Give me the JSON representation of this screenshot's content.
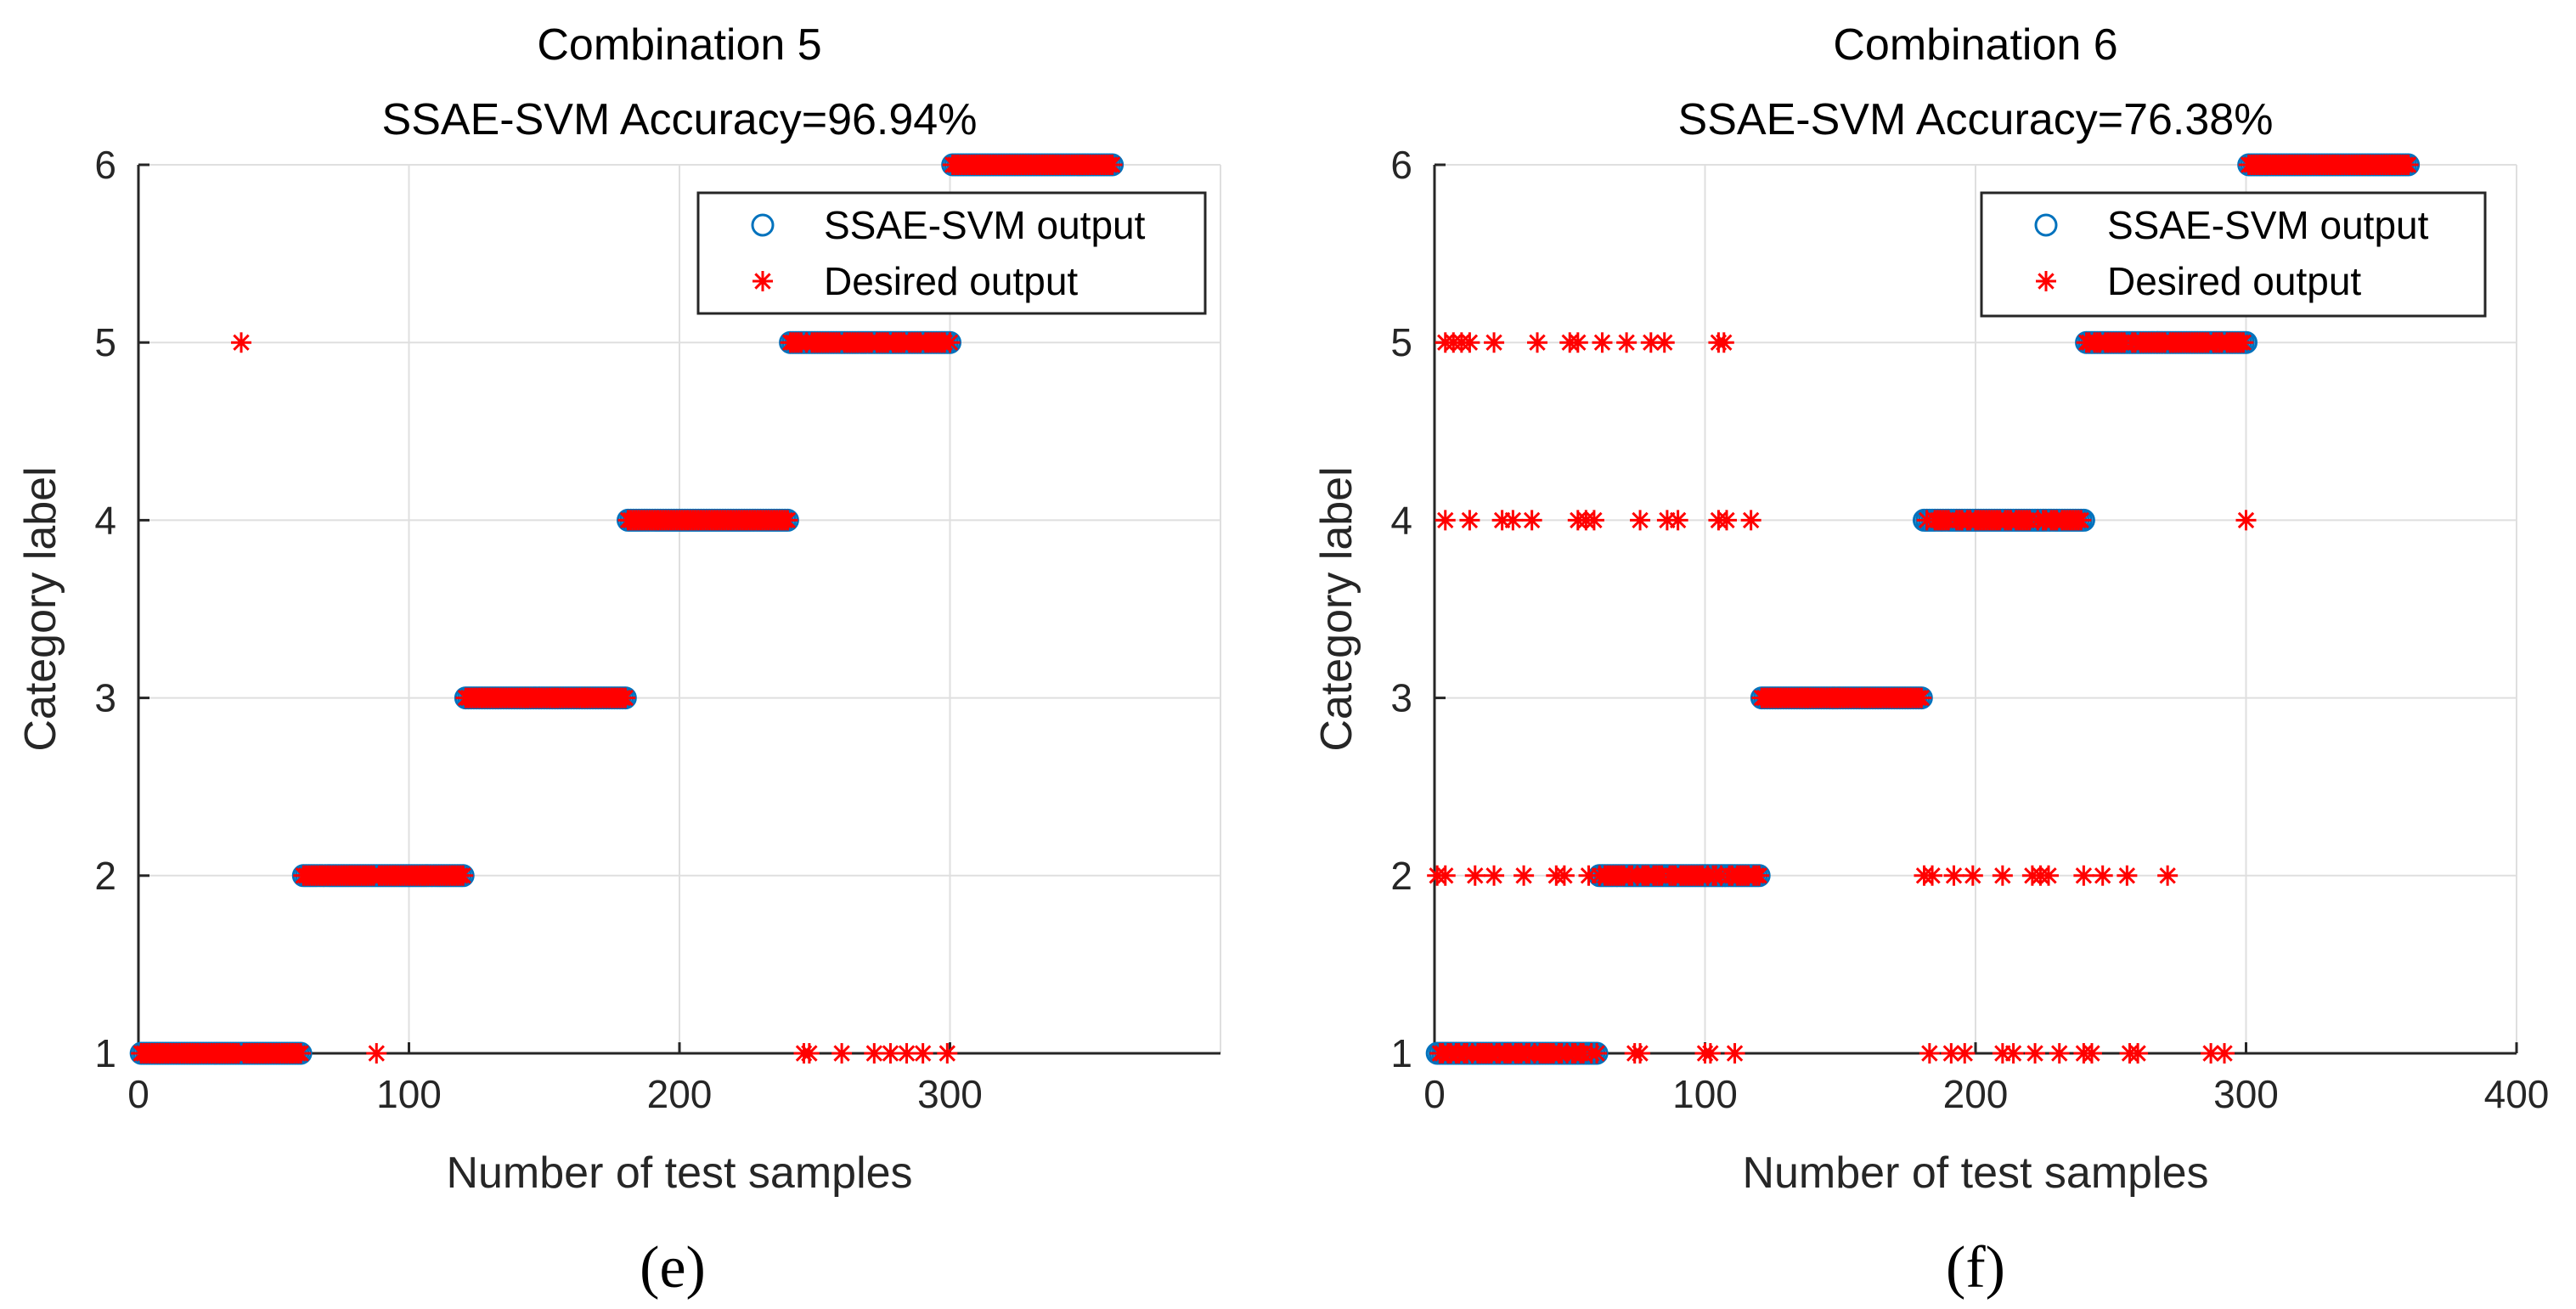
{
  "chart_data": [
    {
      "type": "scatter",
      "title": "Combination 5",
      "subtitle": "SSAE-SVM Accuracy=96.94%",
      "xlabel": "Number of test samples",
      "ylabel": "Category label",
      "xlim": [
        0,
        400
      ],
      "ylim": [
        1,
        6
      ],
      "xticks": [
        "0",
        "100",
        "200",
        "300"
      ],
      "yticks": [
        "1",
        "2",
        "3",
        "4",
        "5",
        "6"
      ],
      "grid": true,
      "legend": {
        "position": "top-right",
        "entries": [
          "SSAE-SVM output",
          "Desired output"
        ]
      },
      "caption": "(e)",
      "series": [
        {
          "name": "SSAE-SVM output",
          "marker": "circle",
          "color": "#0072BD",
          "segments": [
            [
              1,
              60,
              1
            ],
            [
              61,
              120,
              2
            ],
            [
              121,
              180,
              3
            ],
            [
              181,
              240,
              4
            ],
            [
              241,
              300,
              5
            ],
            [
              301,
              360,
              6
            ]
          ]
        },
        {
          "name": "Desired output",
          "marker": "star",
          "color": "#FF0000",
          "segments": [
            [
              1,
              60,
              1
            ],
            [
              61,
              120,
              2
            ],
            [
              121,
              180,
              3
            ],
            [
              181,
              240,
              4
            ],
            [
              241,
              300,
              5
            ],
            [
              301,
              360,
              6
            ]
          ],
          "points": [
            [
              38,
              5
            ],
            [
              88,
              1
            ],
            [
              246,
              1
            ],
            [
              248,
              1
            ],
            [
              260,
              1
            ],
            [
              272,
              1
            ],
            [
              278,
              1
            ],
            [
              284,
              1
            ],
            [
              290,
              1
            ],
            [
              299,
              1
            ]
          ]
        }
      ]
    },
    {
      "type": "scatter",
      "title": "Combination 6",
      "subtitle": "SSAE-SVM Accuracy=76.38%",
      "xlabel": "Number of test samples",
      "ylabel": "Category label",
      "xlim": [
        0,
        400
      ],
      "ylim": [
        1,
        6
      ],
      "xticks": [
        "0",
        "100",
        "200",
        "300",
        "400"
      ],
      "yticks": [
        "1",
        "2",
        "3",
        "4",
        "5",
        "6"
      ],
      "grid": true,
      "legend": {
        "position": "top-right",
        "entries": [
          "SSAE-SVM output",
          "Desired output"
        ]
      },
      "caption": "(f)",
      "series": [
        {
          "name": "SSAE-SVM output",
          "marker": "circle",
          "color": "#0072BD",
          "segments": [
            [
              1,
              60,
              1
            ],
            [
              61,
              120,
              2
            ],
            [
              121,
              180,
              3
            ],
            [
              181,
              240,
              4
            ],
            [
              241,
              300,
              5
            ],
            [
              301,
              360,
              6
            ]
          ]
        },
        {
          "name": "Desired output",
          "marker": "star",
          "color": "#FF0000",
          "segments": [
            [
              1,
              60,
              1
            ],
            [
              61,
              120,
              2
            ],
            [
              121,
              180,
              3
            ],
            [
              181,
              240,
              4
            ],
            [
              241,
              300,
              5
            ],
            [
              301,
              360,
              6
            ]
          ],
          "points": [
            [
              4,
              5
            ],
            [
              7,
              5
            ],
            [
              10,
              5
            ],
            [
              13,
              5
            ],
            [
              22,
              5
            ],
            [
              38,
              5
            ],
            [
              50,
              5
            ],
            [
              53,
              5
            ],
            [
              62,
              5
            ],
            [
              71,
              5
            ],
            [
              80,
              5
            ],
            [
              85,
              5
            ],
            [
              105,
              5
            ],
            [
              107,
              5
            ],
            [
              4,
              4
            ],
            [
              13,
              4
            ],
            [
              25,
              4
            ],
            [
              29,
              4
            ],
            [
              36,
              4
            ],
            [
              53,
              4
            ],
            [
              56,
              4
            ],
            [
              59,
              4
            ],
            [
              76,
              4
            ],
            [
              86,
              4
            ],
            [
              90,
              4
            ],
            [
              105,
              4
            ],
            [
              108,
              4
            ],
            [
              117,
              4
            ],
            [
              300,
              4
            ],
            [
              1,
              2
            ],
            [
              4,
              2
            ],
            [
              15,
              2
            ],
            [
              22,
              2
            ],
            [
              33,
              2
            ],
            [
              45,
              2
            ],
            [
              48,
              2
            ],
            [
              57,
              2
            ],
            [
              181,
              2
            ],
            [
              184,
              2
            ],
            [
              192,
              2
            ],
            [
              199,
              2
            ],
            [
              210,
              2
            ],
            [
              221,
              2
            ],
            [
              224,
              2
            ],
            [
              227,
              2
            ],
            [
              240,
              2
            ],
            [
              247,
              2
            ],
            [
              256,
              2
            ],
            [
              271,
              2
            ],
            [
              74,
              1
            ],
            [
              76,
              1
            ],
            [
              100,
              1
            ],
            [
              102,
              1
            ],
            [
              111,
              1
            ],
            [
              183,
              1
            ],
            [
              191,
              1
            ],
            [
              196,
              1
            ],
            [
              210,
              1
            ],
            [
              214,
              1
            ],
            [
              222,
              1
            ],
            [
              231,
              1
            ],
            [
              240,
              1
            ],
            [
              243,
              1
            ],
            [
              257,
              1
            ],
            [
              260,
              1
            ],
            [
              287,
              1
            ],
            [
              292,
              1
            ]
          ]
        }
      ]
    }
  ]
}
